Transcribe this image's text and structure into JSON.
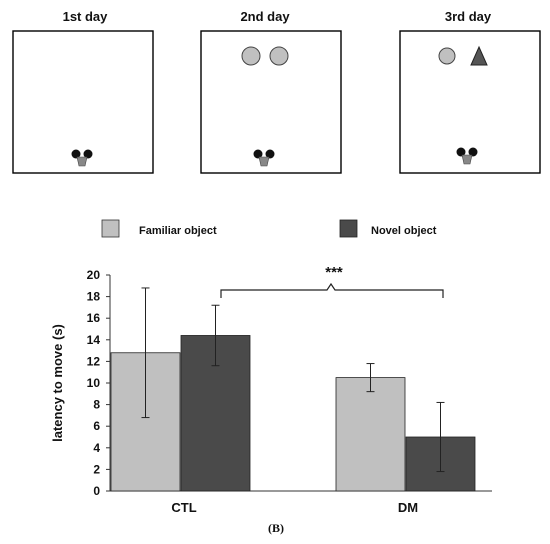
{
  "protocol": {
    "panels": [
      {
        "title": "1st day",
        "objects": []
      },
      {
        "title": "2nd day",
        "objects": [
          "circle",
          "circle"
        ]
      },
      {
        "title": "3rd day",
        "objects": [
          "circle",
          "triangle"
        ]
      }
    ],
    "colors": {
      "object": "#c0c0c0",
      "novel_object": "#555555",
      "frame": "#000000"
    },
    "icons": [
      "mouse-icon",
      "circle-object-icon",
      "triangle-object-icon"
    ]
  },
  "chart_data": {
    "type": "bar",
    "categories": [
      "CTL",
      "DM"
    ],
    "series": [
      {
        "name": "Familiar object",
        "values": [
          12.8,
          10.5
        ],
        "errors": [
          6.0,
          1.3
        ],
        "color": "#c0c0c0"
      },
      {
        "name": "Novel object",
        "values": [
          14.4,
          5.0
        ],
        "errors": [
          2.8,
          3.2
        ],
        "color": "#4a4a4a"
      }
    ],
    "ylabel": "latency to move (s)",
    "xlabel": "",
    "ylim": [
      0,
      20
    ],
    "yticks": [
      "0",
      "2",
      "4",
      "6",
      "8",
      "10",
      "12",
      "14",
      "16",
      "18",
      "20"
    ],
    "grid": false,
    "legend_position": "top",
    "significance": "***"
  },
  "caption": "(B)"
}
